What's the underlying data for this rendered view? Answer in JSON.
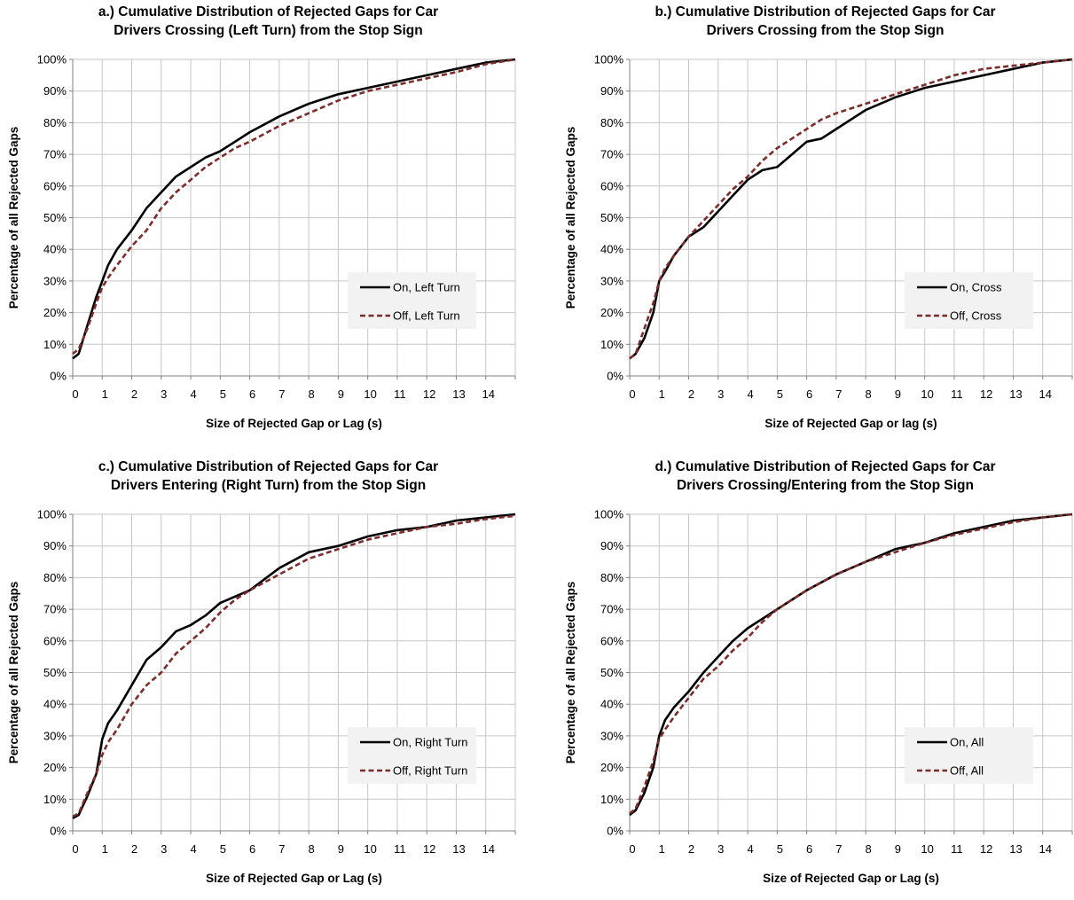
{
  "chart_data": [
    {
      "type": "line",
      "title": [
        "a.) Cumulative Distribution of Rejected Gaps for Car",
        "Drivers Crossing (Left Turn) from the Stop Sign"
      ],
      "xlabel": "Size of Rejected Gap or Lag (s)",
      "ylabel": "Percentage of all Rejected Gaps",
      "xlim": [
        0,
        15
      ],
      "ylim": [
        0,
        100
      ],
      "xticks": [
        "0",
        "1",
        "2",
        "3",
        "4",
        "5",
        "6",
        "7",
        "8",
        "9",
        "10",
        "11",
        "12",
        "13",
        "14"
      ],
      "yticks": [
        "0%",
        "10%",
        "20%",
        "30%",
        "40%",
        "50%",
        "60%",
        "70%",
        "80%",
        "90%",
        "100%"
      ],
      "grid": true,
      "legend_position": "right",
      "series": [
        {
          "name": "On, Left Turn",
          "color": "#000000",
          "dash": "solid",
          "x": [
            0,
            0.2,
            0.5,
            0.8,
            1,
            1.2,
            1.5,
            2,
            2.5,
            3,
            3.5,
            4,
            4.5,
            5,
            5.5,
            6,
            7,
            8,
            9,
            10,
            11,
            12,
            13,
            14,
            15
          ],
          "y": [
            5.5,
            7,
            16,
            25,
            30,
            35,
            40,
            46,
            53,
            58,
            63,
            66,
            69,
            71,
            74,
            77,
            82,
            86,
            89,
            91,
            93,
            95,
            97,
            99,
            100
          ]
        },
        {
          "name": "Off, Left Turn",
          "color": "#7b2d2d",
          "dash": "dashed",
          "x": [
            0,
            0.2,
            0.5,
            0.8,
            1,
            1.2,
            1.5,
            2,
            2.5,
            3,
            3.5,
            4,
            4.5,
            5,
            5.5,
            6,
            7,
            8,
            9,
            10,
            11,
            12,
            13,
            14,
            15
          ],
          "y": [
            7,
            8.5,
            15,
            23,
            28,
            31,
            35,
            41,
            46,
            53,
            58,
            62,
            66,
            69,
            72,
            74,
            79,
            83,
            87,
            90,
            92,
            94,
            96,
            98.5,
            100
          ]
        }
      ]
    },
    {
      "type": "line",
      "title": [
        "b.) Cumulative Distribution of Rejected Gaps for Car",
        "Drivers Crossing from the Stop Sign"
      ],
      "xlabel": "Size of Rejected Gap or lag (s)",
      "ylabel": "Percentage of all Rejected Gaps",
      "xlim": [
        0,
        15
      ],
      "ylim": [
        0,
        100
      ],
      "xticks": [
        "0",
        "1",
        "2",
        "3",
        "4",
        "5",
        "6",
        "7",
        "8",
        "9",
        "10",
        "11",
        "12",
        "13",
        "14"
      ],
      "yticks": [
        "0%",
        "10%",
        "20%",
        "30%",
        "40%",
        "50%",
        "60%",
        "70%",
        "80%",
        "90%",
        "100%"
      ],
      "grid": true,
      "legend_position": "right",
      "series": [
        {
          "name": "On, Cross",
          "color": "#000000",
          "dash": "solid",
          "x": [
            0,
            0.2,
            0.5,
            0.8,
            1,
            1.2,
            1.5,
            2,
            2.5,
            3,
            3.5,
            4,
            4.5,
            5,
            5.5,
            6,
            6.5,
            7,
            8,
            9,
            10,
            11,
            12,
            13,
            14,
            15
          ],
          "y": [
            5.5,
            7,
            12,
            20,
            30,
            33,
            38,
            44,
            47,
            52,
            57,
            62,
            65,
            66,
            70,
            74,
            75,
            78,
            84,
            88,
            91,
            93,
            95,
            97,
            99,
            100
          ]
        },
        {
          "name": "Off, Cross",
          "color": "#7b2d2d",
          "dash": "dashed",
          "x": [
            0,
            0.2,
            0.5,
            0.8,
            1,
            1.2,
            1.5,
            2,
            2.5,
            3,
            3.5,
            4,
            4.5,
            5,
            5.5,
            6,
            6.5,
            7,
            8,
            9,
            10,
            11,
            12,
            13,
            14,
            15
          ],
          "y": [
            5.5,
            7,
            15,
            23,
            30,
            34,
            38,
            44,
            49,
            54,
            59,
            63,
            68,
            72,
            75,
            78,
            81,
            83,
            86,
            89,
            92,
            95,
            97,
            98,
            99,
            100
          ]
        }
      ]
    },
    {
      "type": "line",
      "title": [
        "c.) Cumulative Distribution of Rejected Gaps for Car",
        "Drivers Entering (Right Turn) from the Stop Sign"
      ],
      "xlabel": "Size of Rejected Gap or Lag (s)",
      "ylabel": "Percentage of all Rejected Gaps",
      "xlim": [
        0,
        15
      ],
      "ylim": [
        0,
        100
      ],
      "xticks": [
        "0",
        "1",
        "2",
        "3",
        "4",
        "5",
        "6",
        "7",
        "8",
        "9",
        "10",
        "11",
        "12",
        "13",
        "14"
      ],
      "yticks": [
        "0%",
        "10%",
        "20%",
        "30%",
        "40%",
        "50%",
        "60%",
        "70%",
        "80%",
        "90%",
        "100%"
      ],
      "grid": true,
      "legend_position": "right",
      "series": [
        {
          "name": "On, Right Turn",
          "color": "#000000",
          "dash": "solid",
          "x": [
            0,
            0.2,
            0.5,
            0.8,
            1,
            1.2,
            1.5,
            2,
            2.5,
            3,
            3.5,
            4,
            4.5,
            5,
            5.5,
            6,
            7,
            8,
            9,
            10,
            11,
            12,
            13,
            14,
            15
          ],
          "y": [
            4,
            5,
            11,
            18,
            29,
            34,
            38,
            46,
            54,
            58,
            63,
            65,
            68,
            72,
            74,
            76,
            83,
            88,
            90,
            93,
            95,
            96,
            98,
            99,
            100
          ]
        },
        {
          "name": "Off, Right Turn",
          "color": "#7b2d2d",
          "dash": "dashed",
          "x": [
            0,
            0.2,
            0.5,
            0.8,
            1,
            1.2,
            1.5,
            2,
            2.5,
            3,
            3.5,
            4,
            4.5,
            5,
            5.5,
            6,
            7,
            8,
            9,
            10,
            11,
            12,
            13,
            14,
            15
          ],
          "y": [
            4.5,
            5.5,
            12,
            18,
            24,
            28,
            32,
            40,
            46,
            50,
            56,
            60,
            64,
            69,
            73,
            76,
            81,
            86,
            89,
            92,
            94,
            96,
            97,
            98.5,
            99.5
          ]
        }
      ]
    },
    {
      "type": "line",
      "title": [
        "d.) Cumulative Distribution of Rejected Gaps for Car",
        "Drivers Crossing/Entering from the Stop Sign"
      ],
      "xlabel": "Size of Rejected Gap or Lag (s)",
      "ylabel": "Percentage of all Rejected Gaps",
      "xlim": [
        0,
        15
      ],
      "ylim": [
        0,
        100
      ],
      "xticks": [
        "0",
        "1",
        "2",
        "3",
        "4",
        "5",
        "6",
        "7",
        "8",
        "9",
        "10",
        "11",
        "12",
        "13",
        "14"
      ],
      "yticks": [
        "0%",
        "10%",
        "20%",
        "30%",
        "40%",
        "50%",
        "60%",
        "70%",
        "80%",
        "90%",
        "100%"
      ],
      "grid": true,
      "legend_position": "right",
      "series": [
        {
          "name": "On, All",
          "color": "#000000",
          "dash": "solid",
          "x": [
            0,
            0.2,
            0.5,
            0.8,
            1,
            1.2,
            1.5,
            2,
            2.5,
            3,
            3.5,
            4,
            4.5,
            5,
            5.5,
            6,
            7,
            8,
            9,
            10,
            11,
            12,
            13,
            14,
            15
          ],
          "y": [
            5,
            6.5,
            12,
            20,
            30,
            35,
            39,
            44,
            50,
            55,
            60,
            64,
            67,
            70,
            73,
            76,
            81,
            85,
            89,
            91,
            94,
            96,
            98,
            99,
            100
          ]
        },
        {
          "name": "Off, All",
          "color": "#7b2d2d",
          "dash": "dashed",
          "x": [
            0,
            0.2,
            0.5,
            0.8,
            1,
            1.2,
            1.5,
            2,
            2.5,
            3,
            3.5,
            4,
            4.5,
            5,
            5.5,
            6,
            7,
            8,
            9,
            10,
            11,
            12,
            13,
            14,
            15
          ],
          "y": [
            5.5,
            7,
            14,
            22,
            29,
            32,
            36,
            42,
            48,
            52,
            57,
            61,
            66,
            70,
            73,
            76,
            81,
            85,
            88,
            91,
            93.5,
            95.5,
            97.5,
            99,
            100
          ]
        }
      ]
    }
  ]
}
